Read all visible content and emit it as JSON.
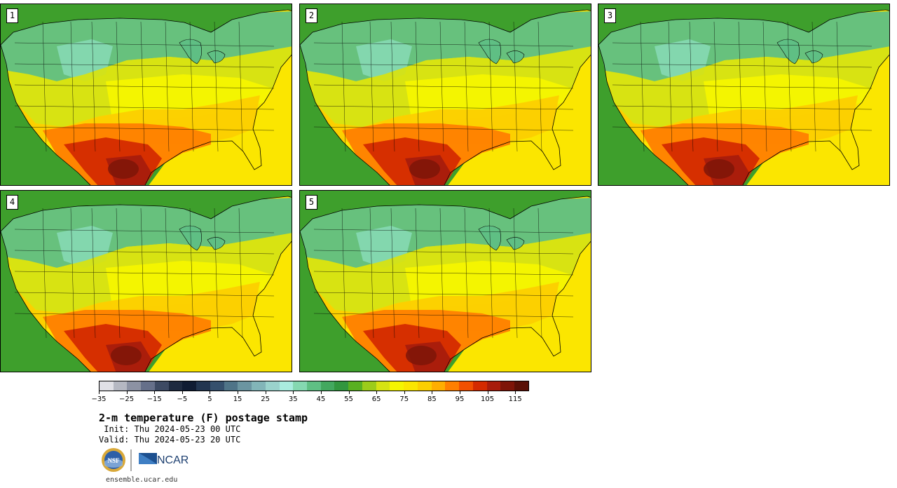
{
  "title": "2-m temperature (F) postage stamp",
  "init_line": " Init: Thu 2024-05-23 00 UTC",
  "valid_line": "Valid: Thu 2024-05-23 20 UTC",
  "url": "ensemble.ucar.edu",
  "logos": {
    "nsf_text": "NSF",
    "ncar_text": "NCAR"
  },
  "panels": [
    {
      "number": "1"
    },
    {
      "number": "2"
    },
    {
      "number": "3"
    },
    {
      "number": "4"
    },
    {
      "number": "5"
    }
  ],
  "colorbar": {
    "unit": "F",
    "tick_labels": [
      "−35",
      "−25",
      "−15",
      "−5",
      "5",
      "15",
      "25",
      "35",
      "45",
      "55",
      "65",
      "75",
      "85",
      "95",
      "105",
      "115"
    ],
    "colors": [
      "#e0e0e6",
      "#b5b8c2",
      "#8c92a3",
      "#66708a",
      "#3d4a63",
      "#1e2a40",
      "#101c33",
      "#223550",
      "#35506d",
      "#4f7488",
      "#6b95a1",
      "#82b5b8",
      "#9ad3cc",
      "#a9ecdf",
      "#85d8b1",
      "#5fbf84",
      "#43a85f",
      "#32963f",
      "#59b021",
      "#9ccc1a",
      "#d6e313",
      "#f5f500",
      "#fbe600",
      "#fccf00",
      "#ffae00",
      "#ff7f00",
      "#f25000",
      "#d42a00",
      "#a81c0c",
      "#7e1508",
      "#5a1006"
    ]
  },
  "map_palette": {
    "ocean_pacific": "#3e9f2c",
    "ocean_gulf": "#fbe600",
    "lakes": "#5fbf84",
    "border": "#000000"
  }
}
